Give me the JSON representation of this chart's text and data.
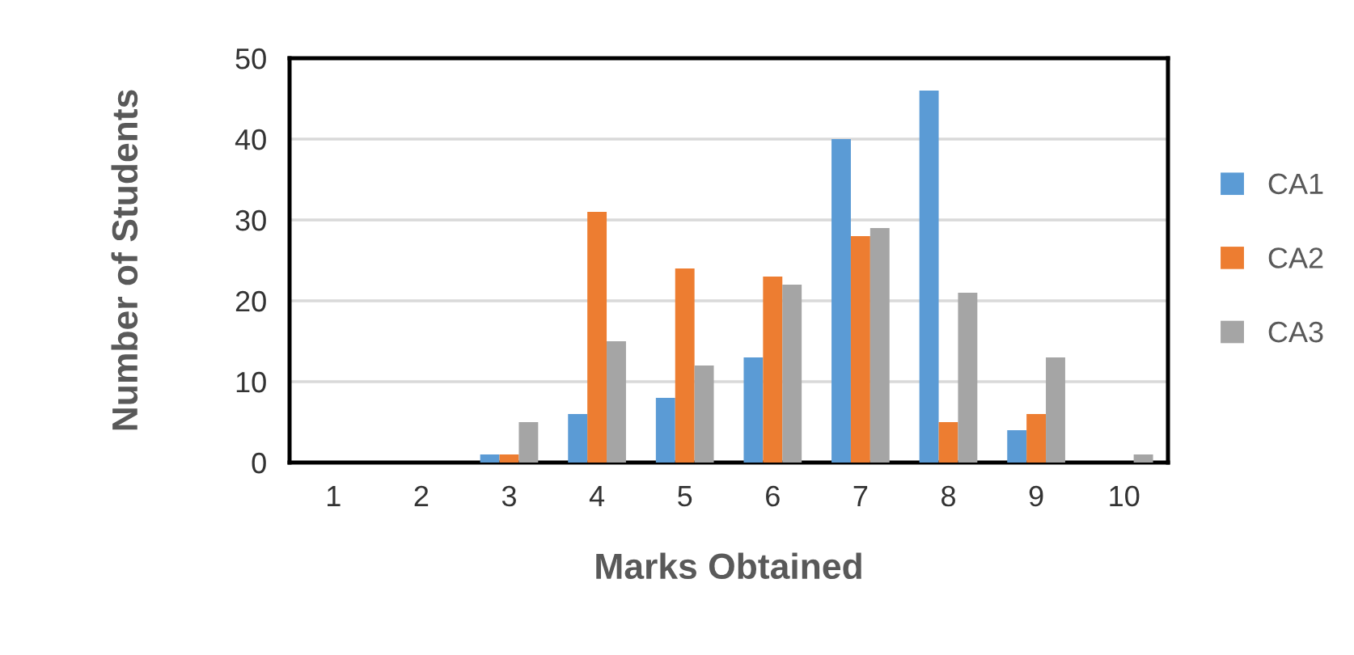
{
  "chart_data": {
    "type": "bar",
    "xlabel": "Marks Obtained",
    "ylabel": "Number of Students",
    "categories": [
      "1",
      "2",
      "3",
      "4",
      "5",
      "6",
      "7",
      "8",
      "9",
      "10"
    ],
    "series": [
      {
        "name": "CA1",
        "color": "#5b9bd5",
        "values": [
          0,
          0,
          1,
          6,
          8,
          13,
          40,
          46,
          4,
          0
        ]
      },
      {
        "name": "CA2",
        "color": "#ed7d31",
        "values": [
          0,
          0,
          1,
          31,
          24,
          23,
          28,
          5,
          6,
          0
        ]
      },
      {
        "name": "CA3",
        "color": "#a5a5a5",
        "values": [
          0,
          0,
          5,
          15,
          12,
          22,
          29,
          21,
          13,
          1
        ]
      }
    ],
    "ylim": [
      0,
      50
    ],
    "yticks": [
      0,
      10,
      20,
      30,
      40,
      50
    ],
    "grid": "y",
    "legend": "right"
  }
}
